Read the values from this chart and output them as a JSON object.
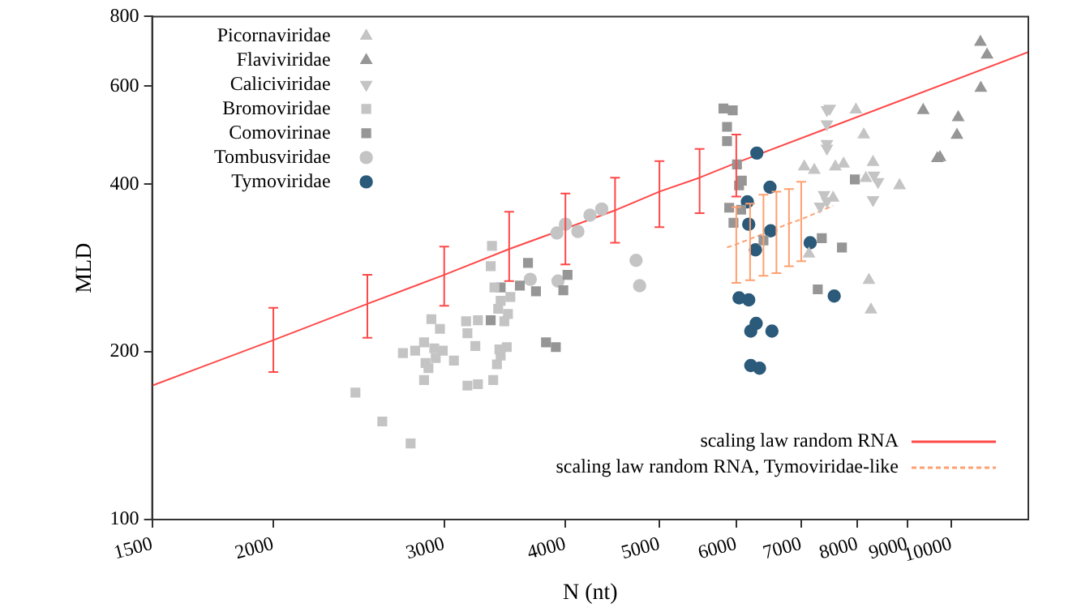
{
  "chart_data": {
    "type": "scatter",
    "xlabel": "N (nt)",
    "ylabel": "MLD",
    "log": "xy",
    "xlim": [
      1500,
      12000
    ],
    "ylim": [
      100,
      800
    ],
    "xticks": [
      1500,
      2000,
      3000,
      4000,
      5000,
      6000,
      7000,
      8000,
      9000,
      10000
    ],
    "yticks": [
      100,
      200,
      400,
      600,
      800
    ],
    "legend": "top left",
    "series": [
      {
        "name": "Picornaviridae",
        "marker": "triangle",
        "color": "#c4c4c4",
        "x": [
          7970,
          8120,
          7050,
          7220,
          7590,
          7740,
          8300,
          8160,
          8840,
          7550,
          7130,
          8220,
          8260
        ],
        "values": [
          544,
          491,
          430,
          424,
          430,
          435,
          438,
          410,
          398,
          378,
          300,
          269,
          238
        ]
      },
      {
        "name": "Flaviviridae",
        "marker": "triangle",
        "color": "#969696",
        "x": [
          10710,
          10880,
          10720,
          9350,
          10160,
          10130,
          9670,
          9730
        ],
        "values": [
          720,
          683,
          595,
          543,
          527,
          490,
          445,
          447
        ]
      },
      {
        "name": "Caliciviridae",
        "marker": "triangle_down",
        "color": "#c4c4c4",
        "x": [
          7440,
          7490,
          7440,
          7440,
          7440,
          8320,
          8400,
          7390,
          7440,
          7320,
          8300
        ],
        "values": [
          544,
          547,
          513,
          473,
          464,
          415,
          404,
          383,
          373,
          365,
          375
        ]
      },
      {
        "name": "Bromoviridae",
        "marker": "square",
        "color": "#c4c4c4",
        "x": [
          2430,
          2590,
          2770,
          2720,
          2800,
          2860,
          2910,
          2970,
          2930,
          2990,
          2940,
          2870,
          2890,
          2860,
          3070,
          3160,
          3170,
          3230,
          3250,
          3170,
          3250,
          3370,
          3400,
          3430,
          3480,
          3420,
          3460,
          3490,
          3410,
          3430,
          3510,
          3380,
          3350,
          3360
        ],
        "values": [
          169,
          150,
          137,
          199,
          201,
          208,
          229,
          220,
          203,
          201,
          195,
          191,
          187,
          178,
          193,
          227,
          216,
          205,
          228,
          174,
          175,
          178,
          190,
          197,
          204,
          202,
          227,
          234,
          239,
          247,
          251,
          261,
          285,
          310
        ]
      },
      {
        "name": "Comovirinae",
        "marker": "square",
        "color": "#969696",
        "x": [
          3350,
          3430,
          3590,
          3660,
          3730,
          3820,
          3910,
          4020,
          3980,
          5820,
          5950,
          5870,
          5870,
          6010,
          6080,
          6040,
          5900,
          6070,
          5960,
          6400,
          7350,
          7710,
          7950,
          7280
        ],
        "values": [
          228,
          261,
          263,
          289,
          257,
          208,
          204,
          275,
          258,
          547,
          543,
          507,
          478,
          434,
          406,
          398,
          363,
          360,
          341,
          317,
          320,
          308,
          408,
          259
        ]
      },
      {
        "name": "Tombusviridae",
        "marker": "circle",
        "color": "#c4c4c4",
        "x": [
          3680,
          3930,
          4000,
          4120,
          3920,
          4240,
          4360,
          4730,
          4770
        ],
        "values": [
          270,
          268,
          339,
          329,
          327,
          352,
          361,
          292,
          263
        ]
      },
      {
        "name": "Tymoviridae",
        "marker": "circle",
        "color": "#2b5a7a",
        "x": [
          6300,
          6500,
          6160,
          6180,
          6510,
          6280,
          7150,
          6040,
          6180,
          7570,
          6290,
          6210,
          6530,
          6210,
          6340
        ],
        "values": [
          455,
          395,
          372,
          339,
          330,
          305,
          314,
          250,
          248,
          252,
          225,
          218,
          218,
          189,
          187
        ]
      },
      {
        "name": "scaling law random RNA",
        "type": "line",
        "line_style": "solid",
        "color": "#ff4848",
        "x": [
          1500,
          2000,
          2500,
          3000,
          3500,
          4000,
          4500,
          5000,
          5500,
          6000,
          12000
        ],
        "values": [
          174,
          210,
          244,
          275,
          306,
          333,
          359,
          388,
          411,
          437,
          691
        ],
        "errors": [
          null,
          [
            184,
            240
          ],
          [
            212,
            275
          ],
          [
            242,
            309
          ],
          [
            268,
            357
          ],
          [
            287,
            385
          ],
          [
            314,
            411
          ],
          [
            335,
            440
          ],
          [
            355,
            463
          ],
          [
            380,
            491
          ],
          null
        ]
      },
      {
        "name": "scaling law random RNA, Tymoviridae-like",
        "type": "line",
        "line_style": "dashed",
        "color": "#ffa070",
        "x": [
          5870,
          6000,
          6200,
          6400,
          6600,
          6800,
          7000,
          7550
        ],
        "values": [
          308,
          312,
          319,
          326,
          333,
          340,
          346,
          366
        ],
        "errors": [
          null,
          [
            266,
            364
          ],
          [
            269,
            369
          ],
          [
            274,
            383
          ],
          [
            277,
            388
          ],
          [
            285,
            392
          ],
          [
            291,
            404
          ],
          null
        ]
      }
    ]
  }
}
